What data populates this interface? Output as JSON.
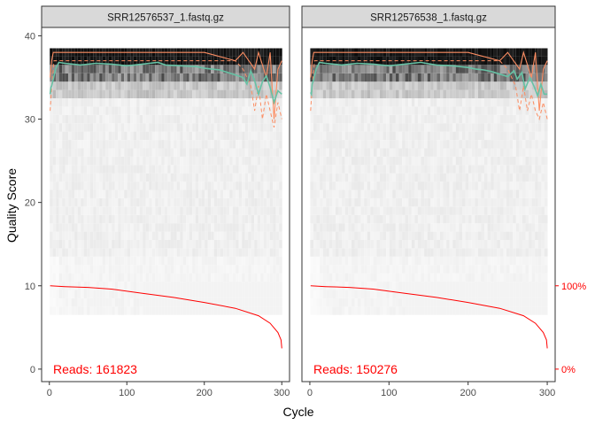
{
  "chart_data": {
    "type": "heatmap",
    "title": "",
    "xlabel": "Cycle",
    "ylabel": "Quality Score",
    "xlim": [
      -10,
      310
    ],
    "ylim": [
      -1.5,
      41
    ],
    "x_ticks": [
      0,
      100,
      200,
      300
    ],
    "y_ticks": [
      0,
      10,
      20,
      30,
      40
    ],
    "secondary_y_ticks": [
      {
        "label": "100%",
        "value": 10
      },
      {
        "label": "0%",
        "value": 0
      }
    ],
    "grid": false,
    "legend": "none",
    "colors": {
      "mean_quality": "#66C2A5",
      "quartiles": "#FC8D62",
      "reads_remaining": "#FF0000",
      "reads_text": "#FF0000",
      "strip_bg": "#D9D9D9"
    },
    "panels": [
      {
        "name": "SRR12576537_1.fastq.gz",
        "reads_label": "Reads:  161823",
        "mean_quality": [
          [
            1,
            33.0
          ],
          [
            2,
            33.8
          ],
          [
            3,
            34.0
          ],
          [
            5,
            34.8
          ],
          [
            8,
            36.0
          ],
          [
            12,
            36.8
          ],
          [
            20,
            36.7
          ],
          [
            30,
            36.6
          ],
          [
            40,
            36.5
          ],
          [
            60,
            36.7
          ],
          [
            80,
            36.6
          ],
          [
            100,
            36.4
          ],
          [
            120,
            36.6
          ],
          [
            140,
            36.8
          ],
          [
            150,
            36.5
          ],
          [
            170,
            36.4
          ],
          [
            190,
            36.3
          ],
          [
            200,
            36.1
          ],
          [
            210,
            36.0
          ],
          [
            220,
            35.9
          ],
          [
            230,
            35.6
          ],
          [
            240,
            35.3
          ],
          [
            250,
            35.0
          ],
          [
            255,
            34.2
          ],
          [
            260,
            35.8
          ],
          [
            265,
            34.6
          ],
          [
            270,
            33.0
          ],
          [
            275,
            34.5
          ],
          [
            280,
            35.2
          ],
          [
            285,
            33.8
          ],
          [
            290,
            32.0
          ],
          [
            295,
            33.4
          ],
          [
            300,
            33.0
          ]
        ],
        "median_quality": [
          [
            1,
            35
          ],
          [
            3,
            37
          ],
          [
            5,
            38
          ],
          [
            10,
            38
          ],
          [
            100,
            38
          ],
          [
            200,
            38
          ],
          [
            240,
            37
          ],
          [
            250,
            38
          ],
          [
            265,
            36
          ],
          [
            270,
            38
          ],
          [
            280,
            35
          ],
          [
            285,
            38
          ],
          [
            290,
            30
          ],
          [
            295,
            36
          ],
          [
            300,
            37
          ]
        ],
        "q25_quality": [
          [
            1,
            31
          ],
          [
            3,
            34
          ],
          [
            6,
            37
          ],
          [
            15,
            37
          ],
          [
            240,
            37
          ],
          [
            250,
            36
          ],
          [
            260,
            34
          ],
          [
            265,
            31
          ],
          [
            270,
            34
          ],
          [
            275,
            30
          ],
          [
            280,
            33
          ],
          [
            285,
            31
          ],
          [
            290,
            29
          ],
          [
            295,
            32
          ],
          [
            300,
            30
          ]
        ],
        "reads_remaining_pct": [
          [
            1,
            100
          ],
          [
            20,
            99
          ],
          [
            50,
            98
          ],
          [
            80,
            96
          ],
          [
            120,
            91
          ],
          [
            160,
            86
          ],
          [
            200,
            80
          ],
          [
            240,
            73
          ],
          [
            270,
            64
          ],
          [
            285,
            55
          ],
          [
            295,
            44
          ],
          [
            299,
            35
          ],
          [
            300,
            25
          ]
        ]
      },
      {
        "name": "SRR12576538_1.fastq.gz",
        "reads_label": "Reads:  150276",
        "mean_quality": [
          [
            1,
            33.2
          ],
          [
            2,
            33.0
          ],
          [
            3,
            34.2
          ],
          [
            5,
            34.8
          ],
          [
            8,
            36.0
          ],
          [
            12,
            36.8
          ],
          [
            20,
            36.7
          ],
          [
            30,
            36.6
          ],
          [
            40,
            36.5
          ],
          [
            60,
            36.7
          ],
          [
            80,
            36.6
          ],
          [
            100,
            36.4
          ],
          [
            120,
            36.6
          ],
          [
            140,
            36.8
          ],
          [
            160,
            36.5
          ],
          [
            180,
            36.4
          ],
          [
            200,
            36.2
          ],
          [
            210,
            36.0
          ],
          [
            220,
            35.9
          ],
          [
            230,
            35.7
          ],
          [
            240,
            35.4
          ],
          [
            250,
            35.1
          ],
          [
            258,
            35.8
          ],
          [
            262,
            34.8
          ],
          [
            268,
            35.6
          ],
          [
            272,
            33.6
          ],
          [
            278,
            35.0
          ],
          [
            283,
            34.0
          ],
          [
            288,
            32.8
          ],
          [
            292,
            34.2
          ],
          [
            296,
            33.0
          ],
          [
            300,
            33.0
          ]
        ],
        "median_quality": [
          [
            1,
            35
          ],
          [
            3,
            37
          ],
          [
            5,
            38
          ],
          [
            10,
            38
          ],
          [
            100,
            38
          ],
          [
            200,
            38
          ],
          [
            240,
            37
          ],
          [
            250,
            38
          ],
          [
            265,
            36
          ],
          [
            270,
            38
          ],
          [
            280,
            35
          ],
          [
            285,
            38
          ],
          [
            290,
            31
          ],
          [
            295,
            36
          ],
          [
            300,
            37
          ]
        ],
        "q25_quality": [
          [
            1,
            31
          ],
          [
            3,
            34
          ],
          [
            6,
            37
          ],
          [
            15,
            37
          ],
          [
            240,
            37
          ],
          [
            250,
            36
          ],
          [
            260,
            34
          ],
          [
            265,
            31
          ],
          [
            270,
            34
          ],
          [
            275,
            31
          ],
          [
            280,
            33
          ],
          [
            285,
            31
          ],
          [
            290,
            30
          ],
          [
            295,
            32
          ],
          [
            300,
            30
          ]
        ],
        "reads_remaining_pct": [
          [
            1,
            100
          ],
          [
            20,
            99
          ],
          [
            50,
            98
          ],
          [
            80,
            96
          ],
          [
            120,
            91
          ],
          [
            160,
            86
          ],
          [
            200,
            80
          ],
          [
            240,
            73
          ],
          [
            270,
            64
          ],
          [
            285,
            55
          ],
          [
            295,
            44
          ],
          [
            299,
            35
          ],
          [
            300,
            25
          ]
        ]
      }
    ]
  }
}
